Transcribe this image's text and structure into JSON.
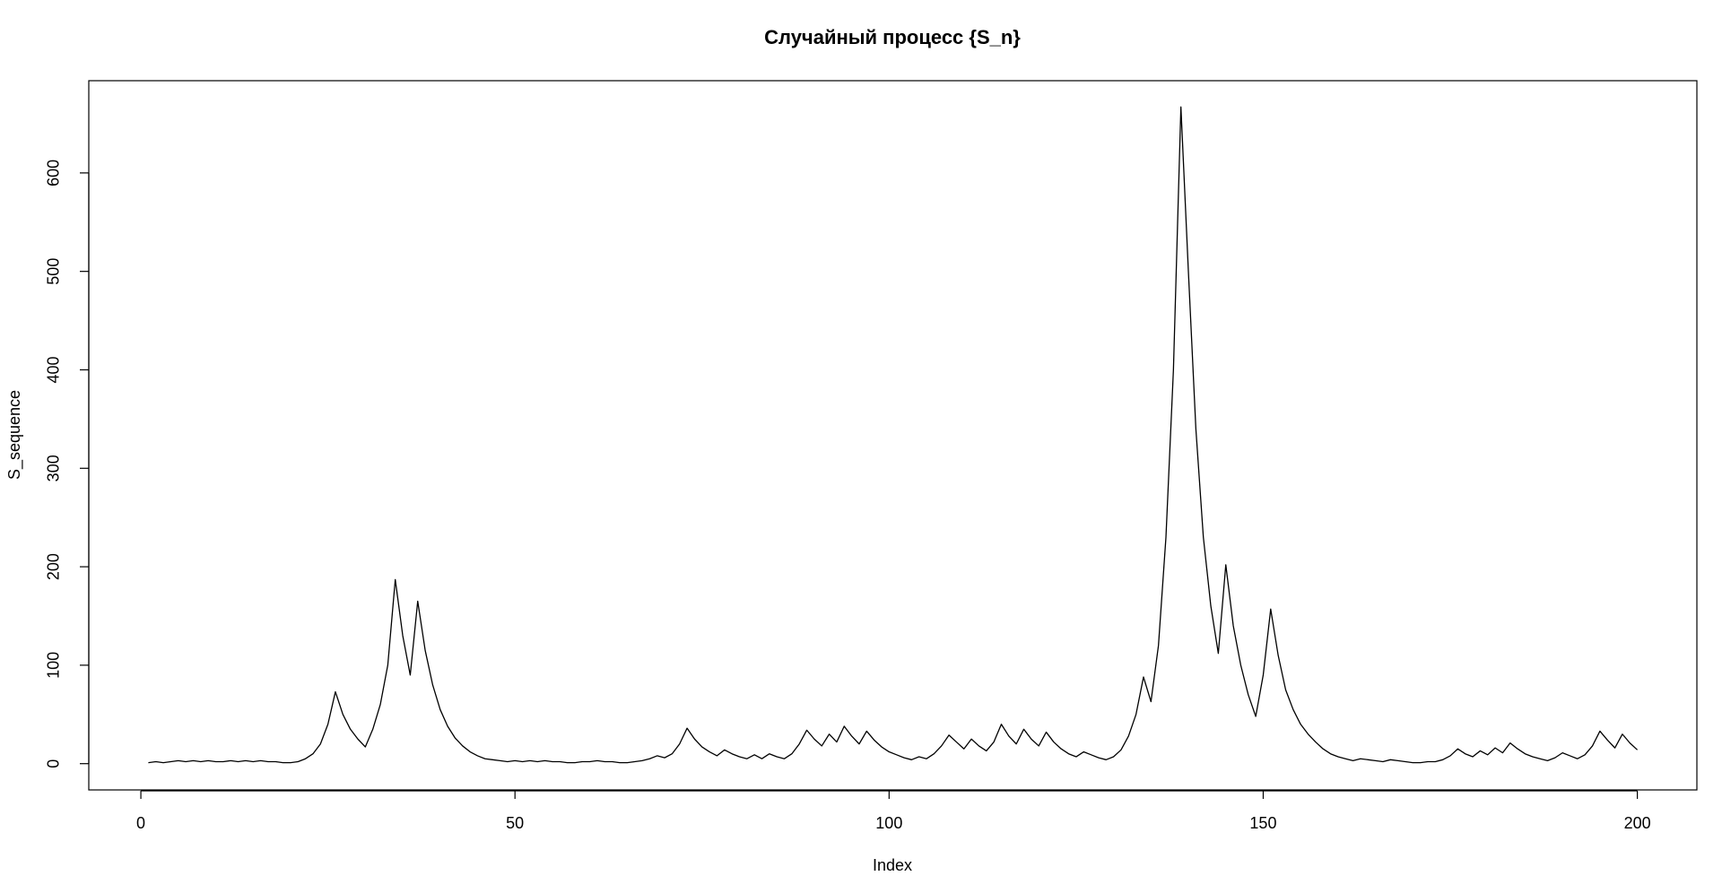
{
  "chart_data": {
    "type": "line",
    "title": "Случайный процесс {S_n}",
    "x_label": "Index",
    "y_label": "S_sequence",
    "color": "#000000",
    "x": [
      1,
      2,
      3,
      4,
      5,
      6,
      7,
      8,
      9,
      10,
      11,
      12,
      13,
      14,
      15,
      16,
      17,
      18,
      19,
      20,
      21,
      22,
      23,
      24,
      25,
      26,
      27,
      28,
      29,
      30,
      31,
      32,
      33,
      34,
      35,
      36,
      37,
      38,
      39,
      40,
      41,
      42,
      43,
      44,
      45,
      46,
      47,
      48,
      49,
      50,
      51,
      52,
      53,
      54,
      55,
      56,
      57,
      58,
      59,
      60,
      61,
      62,
      63,
      64,
      65,
      66,
      67,
      68,
      69,
      70,
      71,
      72,
      73,
      74,
      75,
      76,
      77,
      78,
      79,
      80,
      81,
      82,
      83,
      84,
      85,
      86,
      87,
      88,
      89,
      90,
      91,
      92,
      93,
      94,
      95,
      96,
      97,
      98,
      99,
      100,
      101,
      102,
      103,
      104,
      105,
      106,
      107,
      108,
      109,
      110,
      111,
      112,
      113,
      114,
      115,
      116,
      117,
      118,
      119,
      120,
      121,
      122,
      123,
      124,
      125,
      126,
      127,
      128,
      129,
      130,
      131,
      132,
      133,
      134,
      135,
      136,
      137,
      138,
      139,
      140,
      141,
      142,
      143,
      144,
      145,
      146,
      147,
      148,
      149,
      150,
      151,
      152,
      153,
      154,
      155,
      156,
      157,
      158,
      159,
      160,
      161,
      162,
      163,
      164,
      165,
      166,
      167,
      168,
      169,
      170,
      171,
      172,
      173,
      174,
      175,
      176,
      177,
      178,
      179,
      180,
      181,
      182,
      183,
      184,
      185,
      186,
      187,
      188,
      189,
      190,
      191,
      192,
      193,
      194,
      195,
      196,
      197,
      198,
      199,
      200
    ],
    "series": [
      {
        "name": "S_sequence",
        "values": [
          1,
          2,
          1,
          2,
          3,
          2,
          3,
          2,
          3,
          2,
          2,
          3,
          2,
          3,
          2,
          3,
          2,
          2,
          1,
          1,
          2,
          5,
          10,
          20,
          40,
          73,
          50,
          35,
          25,
          17,
          35,
          60,
          100,
          187,
          130,
          90,
          165,
          115,
          80,
          55,
          38,
          26,
          18,
          12,
          8,
          5,
          4,
          3,
          2,
          3,
          2,
          3,
          2,
          3,
          2,
          2,
          1,
          1,
          2,
          2,
          3,
          2,
          2,
          1,
          1,
          2,
          3,
          5,
          8,
          6,
          10,
          20,
          36,
          25,
          17,
          12,
          8,
          14,
          10,
          7,
          5,
          9,
          5,
          10,
          7,
          5,
          10,
          20,
          34,
          25,
          18,
          30,
          22,
          38,
          28,
          20,
          33,
          24,
          17,
          12,
          9,
          6,
          4,
          7,
          5,
          10,
          18,
          29,
          22,
          15,
          25,
          18,
          13,
          22,
          40,
          28,
          20,
          35,
          25,
          18,
          32,
          22,
          15,
          10,
          7,
          12,
          9,
          6,
          4,
          7,
          14,
          28,
          50,
          88,
          63,
          120,
          230,
          400,
          667,
          500,
          340,
          230,
          160,
          112,
          202,
          140,
          100,
          70,
          48,
          90,
          157,
          110,
          75,
          55,
          40,
          30,
          22,
          15,
          10,
          7,
          5,
          3,
          5,
          4,
          3,
          2,
          4,
          3,
          2,
          1,
          1,
          2,
          2,
          4,
          8,
          15,
          10,
          7,
          13,
          9,
          16,
          11,
          21,
          15,
          10,
          7,
          5,
          3,
          6,
          11,
          8,
          5,
          9,
          18,
          33,
          24,
          16,
          30,
          21,
          14
        ]
      }
    ],
    "xlim": [
      -6.96,
      207.96
    ],
    "xticks": [
      0,
      50,
      100,
      150,
      200
    ],
    "ylim": [
      -26.68,
      693.68
    ],
    "yticks": [
      0,
      100,
      200,
      300,
      400,
      500,
      600
    ]
  }
}
